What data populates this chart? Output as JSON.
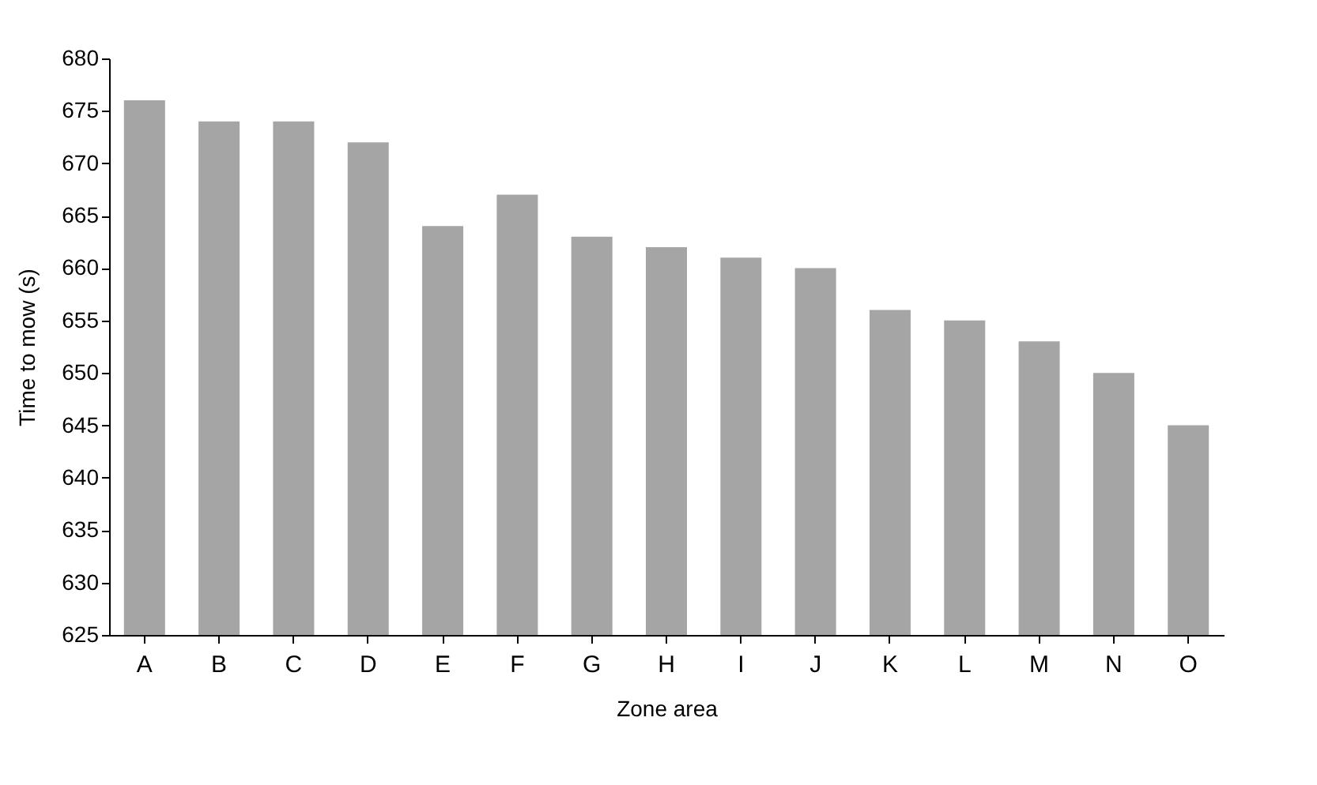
{
  "chart_data": {
    "type": "bar",
    "xlabel": "Zone area",
    "ylabel": "Time to mow (s)",
    "categories": [
      "A",
      "B",
      "C",
      "D",
      "E",
      "F",
      "G",
      "H",
      "I",
      "J",
      "K",
      "L",
      "M",
      "N",
      "O"
    ],
    "values": [
      676,
      674,
      674,
      672,
      664,
      667,
      663,
      662,
      661,
      660,
      656,
      655,
      653,
      650,
      645
    ],
    "color": "#a5a5a5",
    "ylim": [
      625,
      680
    ],
    "yticks": [
      625,
      630,
      635,
      640,
      645,
      650,
      655,
      660,
      665,
      670,
      675,
      680
    ],
    "grid": false
  }
}
